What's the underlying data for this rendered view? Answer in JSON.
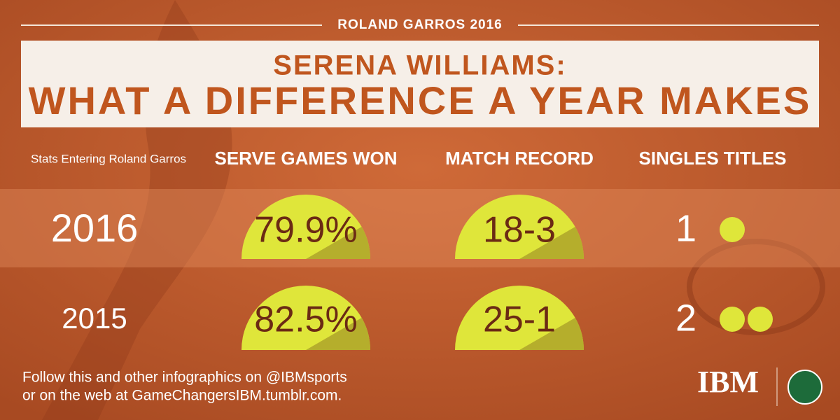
{
  "header": {
    "event": "ROLAND GARROS 2016",
    "title_line1": "SERENA WILLIAMS:",
    "title_line2": "WHAT A DIFFERENCE A YEAR MAKES"
  },
  "table": {
    "columns": [
      "Stats Entering Roland Garros",
      "SERVE GAMES WON",
      "MATCH RECORD",
      "SINGLES TITLES"
    ],
    "rows": [
      [
        "2016",
        "79.9%",
        "18-3",
        1
      ],
      [
        "2015",
        "82.5%",
        "25-1",
        2
      ]
    ]
  },
  "footer": {
    "lines": [
      "Follow this and other infographics on @IBMsports",
      "or on the web at GameChangersIBM.tumblr.com."
    ],
    "logo": "IBM"
  }
}
